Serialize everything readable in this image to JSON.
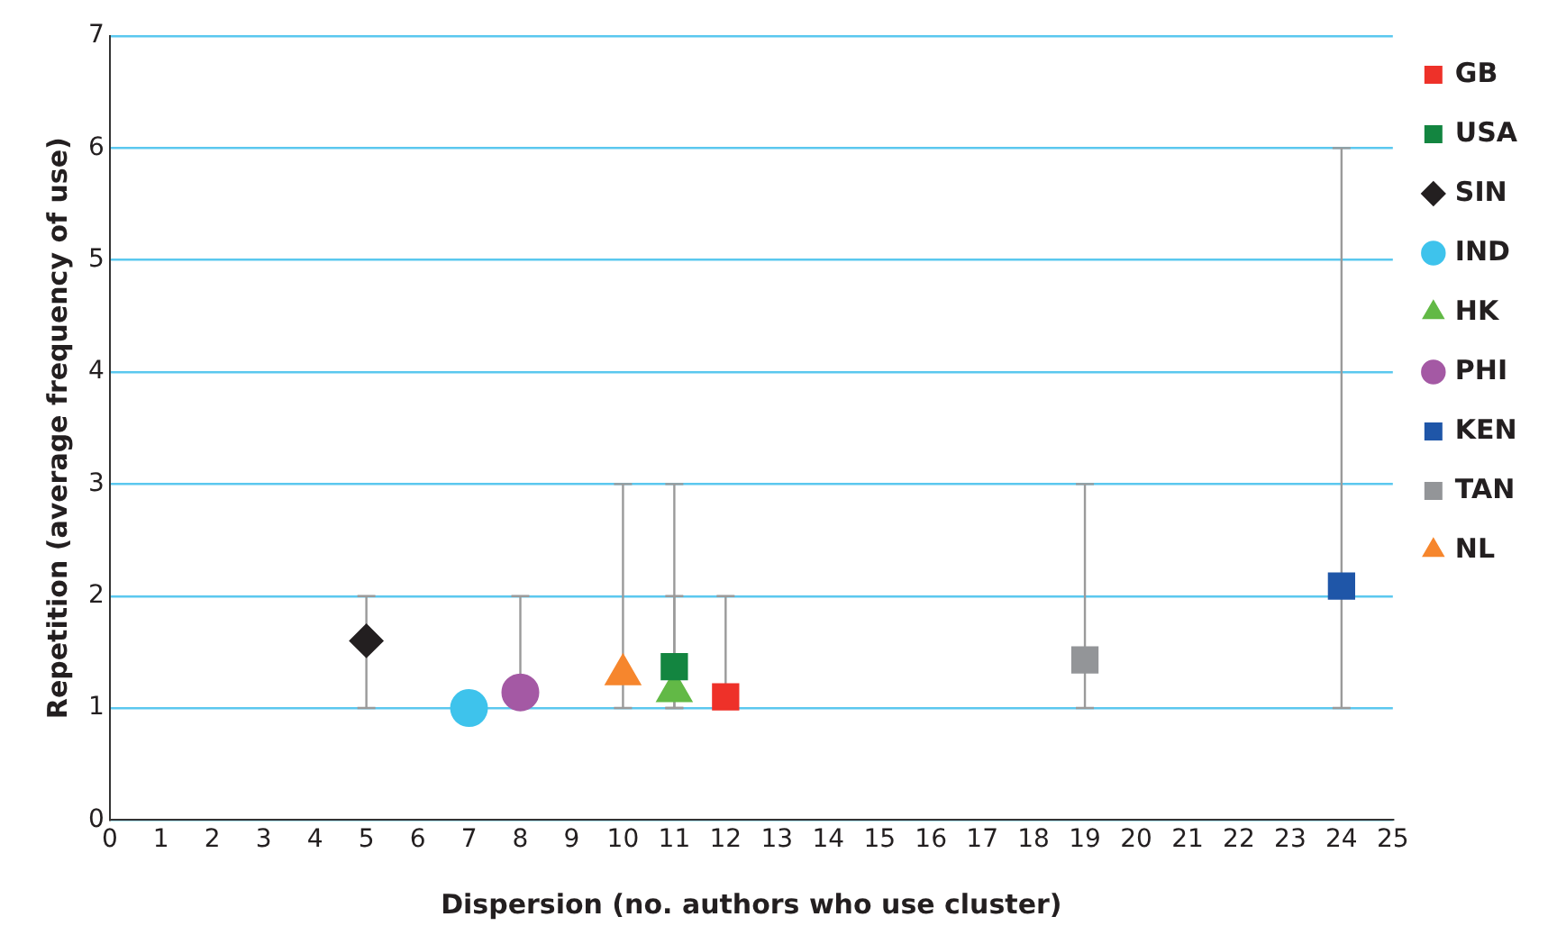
{
  "chart_data": {
    "type": "scatter",
    "xlabel": "Dispersion (no. authors who use cluster)",
    "ylabel": "Repetition (average frequency of use)",
    "xlim": [
      0,
      25
    ],
    "xticks": [
      0,
      1,
      2,
      3,
      4,
      5,
      6,
      7,
      8,
      9,
      10,
      11,
      12,
      13,
      14,
      15,
      16,
      17,
      18,
      19,
      20,
      21,
      22,
      23,
      24,
      25
    ],
    "ylim": [
      0,
      7
    ],
    "yticks": [
      0,
      1,
      2,
      3,
      4,
      5,
      6,
      7
    ],
    "grid": "y",
    "legend": "right",
    "series": [
      {
        "name": "GB",
        "color": "#ee3129",
        "marker": "square",
        "x": [
          12
        ],
        "values": [
          1.1
        ],
        "errors": [
          [
            1,
            2
          ]
        ]
      },
      {
        "name": "USA",
        "color": "#138540",
        "marker": "square",
        "x": [
          11
        ],
        "values": [
          1.37
        ],
        "errors": [
          [
            1,
            3
          ]
        ]
      },
      {
        "name": "SIN",
        "color": "#231f20",
        "marker": "diamond",
        "x": [
          5
        ],
        "values": [
          1.6
        ],
        "errors": [
          [
            1,
            2
          ]
        ]
      },
      {
        "name": "IND",
        "color": "#3ec3ec",
        "marker": "circle",
        "x": [
          7
        ],
        "values": [
          1.0
        ]
      },
      {
        "name": "HK",
        "color": "#62b946",
        "marker": "triangle",
        "x": [
          11
        ],
        "values": [
          1.15
        ],
        "errors": [
          [
            1,
            2
          ]
        ]
      },
      {
        "name": "PHI",
        "color": "#a459a4",
        "marker": "circle",
        "x": [
          8
        ],
        "values": [
          1.14
        ],
        "errors": [
          [
            1,
            2
          ]
        ]
      },
      {
        "name": "KEN",
        "color": "#1f56a8",
        "marker": "square",
        "x": [
          24
        ],
        "values": [
          2.09
        ],
        "errors": [
          [
            1,
            6
          ]
        ]
      },
      {
        "name": "TAN",
        "color": "#939598",
        "marker": "square",
        "x": [
          19
        ],
        "values": [
          1.43
        ],
        "errors": [
          [
            1,
            3
          ]
        ]
      },
      {
        "name": "NL",
        "color": "#f6862d",
        "marker": "triangle",
        "x": [
          10
        ],
        "values": [
          1.3
        ],
        "errors": [
          [
            1,
            3
          ]
        ]
      }
    ]
  }
}
